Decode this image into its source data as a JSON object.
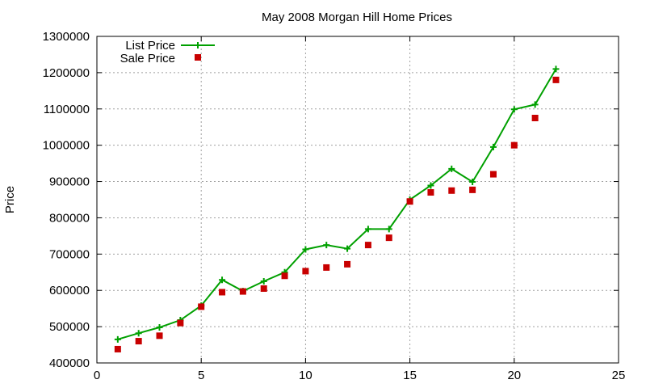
{
  "chart_data": {
    "type": "line",
    "title": "May 2008 Morgan Hill Home Prices",
    "xlabel": "",
    "ylabel": "Price",
    "xlim": [
      0,
      25
    ],
    "ylim": [
      400000,
      1300000
    ],
    "xticks": [
      0,
      5,
      10,
      15,
      20,
      25
    ],
    "yticks": [
      400000,
      500000,
      600000,
      700000,
      800000,
      900000,
      1000000,
      1100000,
      1200000,
      1300000
    ],
    "grid": true,
    "legend_position": "top-left",
    "series": [
      {
        "name": "List Price",
        "style": "line-with-plus-markers",
        "color": "#00a000",
        "x": [
          1,
          2,
          3,
          4,
          5,
          6,
          7,
          8,
          9,
          10,
          11,
          12,
          13,
          14,
          15,
          16,
          17,
          18,
          19,
          20,
          21,
          22
        ],
        "values": [
          465000,
          482000,
          498000,
          518000,
          558000,
          629000,
          598000,
          625000,
          650000,
          713000,
          725000,
          715000,
          769000,
          769000,
          850000,
          889000,
          935000,
          899000,
          995000,
          1099000,
          1112000,
          1210000
        ]
      },
      {
        "name": "Sale Price",
        "style": "square-markers",
        "color": "#c80000",
        "x": [
          1,
          2,
          3,
          4,
          5,
          6,
          7,
          8,
          9,
          10,
          11,
          12,
          13,
          14,
          15,
          16,
          17,
          18,
          19,
          20,
          21,
          22
        ],
        "values": [
          438000,
          460000,
          475000,
          510000,
          555000,
          595000,
          597000,
          605000,
          640000,
          653000,
          663000,
          672000,
          725000,
          745000,
          845000,
          870000,
          875000,
          877000,
          920000,
          1000000,
          1075000,
          1180000
        ]
      }
    ]
  }
}
